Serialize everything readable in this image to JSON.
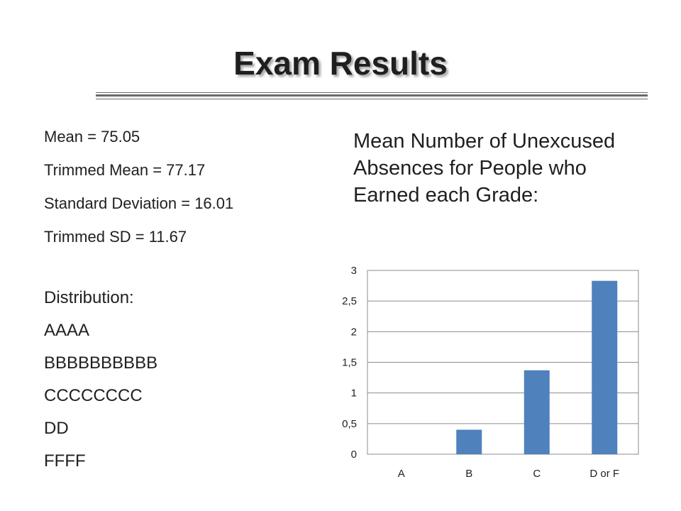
{
  "slide": {
    "title": "Exam Results",
    "stats": [
      "Mean = 75.05",
      "Trimmed Mean = 77.17",
      "Standard Deviation = 16.01",
      "Trimmed SD = 11.67"
    ],
    "distribution_label": "Distribution:",
    "distribution": [
      "AAAA",
      "BBBBBBBBBB",
      "CCCCCCCC",
      "DD",
      "FFFF"
    ],
    "chart_heading": "Mean Number of Unexcused Absences for People who Earned each Grade:"
  },
  "chart_data": {
    "type": "bar",
    "title": "",
    "xlabel": "",
    "ylabel": "",
    "categories": [
      "A",
      "B",
      "C",
      "D or F"
    ],
    "values": [
      0,
      0.4,
      1.37,
      2.83
    ],
    "ylim": [
      0,
      3
    ],
    "yticks": [
      "0",
      "0,5",
      "1",
      "1,5",
      "2",
      "2,5",
      "3"
    ],
    "grid": true,
    "bar_color": "#4f81bd"
  }
}
